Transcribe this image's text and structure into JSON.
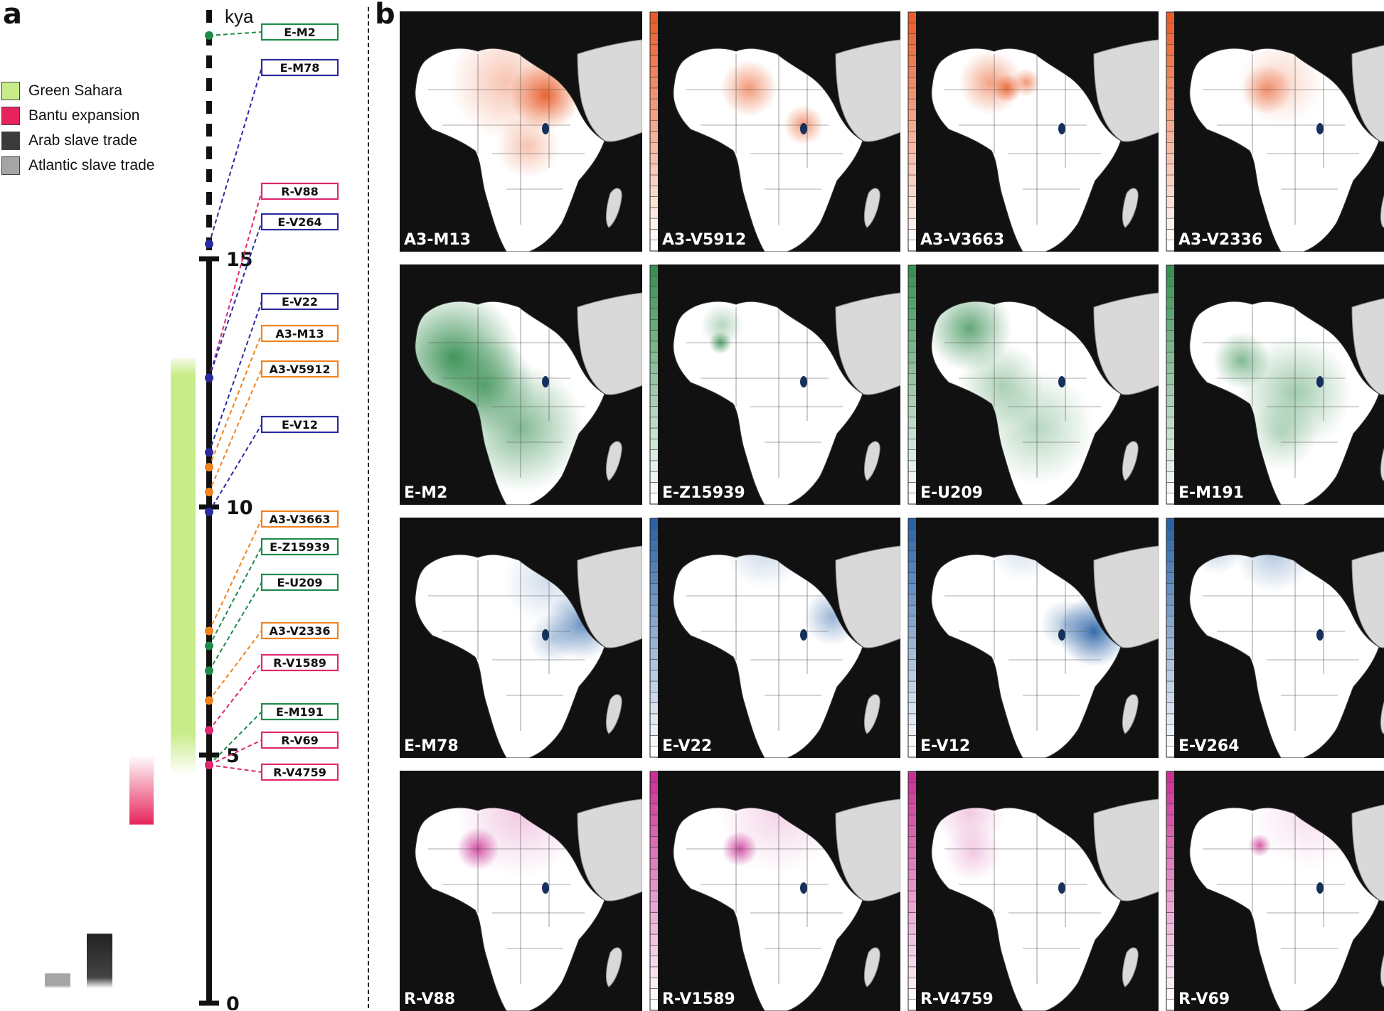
{
  "panels": {
    "a_label": "a",
    "b_label": "b"
  },
  "legend": [
    {
      "label": "Green Sahara",
      "color": "#c9ec8a"
    },
    {
      "label": "Bantu expansion",
      "color": "#e6245b"
    },
    {
      "label": "Arab slave trade",
      "color": "#3b3b3b"
    },
    {
      "label": "Atlantic slave trade",
      "color": "#a5a5a5"
    }
  ],
  "timeline": {
    "unit": "kya",
    "ticks": [
      15,
      10,
      5,
      0
    ],
    "markers": [
      {
        "label": "E-M2",
        "kya": 19.5,
        "family": "green"
      },
      {
        "label": "E-M78",
        "kya": 15.3,
        "family": "blue"
      },
      {
        "label": "R-V88",
        "kya": 12.6,
        "family": "pink"
      },
      {
        "label": "E-V264",
        "kya": 12.6,
        "family": "blue"
      },
      {
        "label": "E-V22",
        "kya": 11.1,
        "family": "blue"
      },
      {
        "label": "A3-M13",
        "kya": 10.8,
        "family": "orange"
      },
      {
        "label": "A3-V5912",
        "kya": 10.3,
        "family": "orange"
      },
      {
        "label": "E-V12",
        "kya": 9.9,
        "family": "blue"
      },
      {
        "label": "A3-V3663",
        "kya": 7.5,
        "family": "orange"
      },
      {
        "label": "E-Z15939",
        "kya": 7.2,
        "family": "green"
      },
      {
        "label": "E-U209",
        "kya": 6.7,
        "family": "green"
      },
      {
        "label": "A3-V2336",
        "kya": 6.1,
        "family": "orange"
      },
      {
        "label": "R-V1589",
        "kya": 5.5,
        "family": "pink"
      },
      {
        "label": "E-M191",
        "kya": 4.8,
        "family": "green"
      },
      {
        "label": "R-V69",
        "kya": 4.8,
        "family": "pink"
      },
      {
        "label": "R-V4759",
        "kya": 4.8,
        "family": "pink"
      }
    ],
    "events": [
      {
        "name": "Green Sahara",
        "from_kya": 13.0,
        "to_kya": 4.6
      },
      {
        "name": "Bantu expansion",
        "from_kya": 5.0,
        "to_kya": 3.6
      },
      {
        "name": "Arab slave trade",
        "from_kya": 1.4,
        "to_kya": 0.3
      },
      {
        "name": "Atlantic slave trade",
        "from_kya": 0.6,
        "to_kya": 0.3
      }
    ]
  },
  "colors": {
    "green": "#1e8a4a",
    "blue": "#2a2aa0",
    "orange": "#f0831f",
    "pink": "#e0266e",
    "map_orange": "#e8541e",
    "map_green": "#2e8a4a",
    "map_blue": "#1f5aa0",
    "map_pink": "#c8268e",
    "ocean": "#111111",
    "land_other": "#d9d9d9"
  },
  "maps": [
    {
      "label": "A3-M13",
      "scheme": "orange",
      "ticks": [
        "40",
        "36",
        "32",
        "28",
        "24",
        "20",
        "16",
        "12",
        "8",
        "4",
        "0"
      ]
    },
    {
      "label": "A3-V5912",
      "scheme": "orange",
      "ticks": [
        "28",
        "24",
        "20",
        "16",
        "12",
        "8",
        "4",
        "0"
      ]
    },
    {
      "label": "A3-V3663",
      "scheme": "orange",
      "ticks": [
        "25",
        "20",
        "15",
        "10",
        "5",
        "0"
      ]
    },
    {
      "label": "A3-V2336",
      "scheme": "orange",
      "ticks": [
        "27",
        "24",
        "21",
        "18",
        "15",
        "12",
        "9",
        "6",
        "3",
        "0"
      ]
    },
    {
      "label": "E-M2",
      "scheme": "green",
      "ticks": [
        "100",
        "90",
        "80",
        "70",
        "60",
        "50",
        "40",
        "30",
        "20",
        "10",
        "0"
      ]
    },
    {
      "label": "E-Z15939",
      "scheme": "green",
      "ticks": [
        "56",
        "52",
        "48",
        "44",
        "40",
        "36",
        "32",
        "28",
        "24",
        "20",
        "16",
        "12",
        "8",
        "4",
        "0"
      ]
    },
    {
      "label": "E-U209",
      "scheme": "green",
      "ticks": [
        "65",
        "60",
        "55",
        "50",
        "45",
        "40",
        "35",
        "30",
        "25",
        "20",
        "15",
        "10",
        "5",
        "0"
      ]
    },
    {
      "label": "E-M191",
      "scheme": "green",
      "ticks": [
        "70",
        "60",
        "50",
        "40",
        "30",
        "20",
        "10",
        "0"
      ]
    },
    {
      "label": "E-M78",
      "scheme": "blue",
      "ticks": [
        "90",
        "80",
        "70",
        "60",
        "50",
        "40",
        "30",
        "20",
        "10",
        "0"
      ]
    },
    {
      "label": "E-V22",
      "scheme": "blue",
      "ticks": [
        "90",
        "80",
        "70",
        "60",
        "50",
        "40",
        "30",
        "20",
        "10",
        "0"
      ]
    },
    {
      "label": "E-V12",
      "scheme": "blue",
      "ticks": [
        "70",
        "60",
        "50",
        "40",
        "30",
        "20",
        "10",
        "0"
      ]
    },
    {
      "label": "E-V264",
      "scheme": "blue",
      "ticks": [
        "32",
        "28",
        "24",
        "20",
        "16",
        "12",
        "8",
        "4",
        "0"
      ]
    },
    {
      "label": "R-V88",
      "scheme": "pink",
      "ticks": [
        "90",
        "80",
        "70",
        "60",
        "50",
        "40",
        "30",
        "20",
        "10",
        "0"
      ]
    },
    {
      "label": "R-V1589",
      "scheme": "pink",
      "ticks": [
        "90",
        "80",
        "70",
        "60",
        "50",
        "40",
        "30",
        "20",
        "10",
        "0"
      ]
    },
    {
      "label": "R-V4759",
      "scheme": "pink",
      "ticks": [
        "14",
        "12",
        "10",
        "8",
        "6",
        "4",
        "2",
        "0"
      ]
    },
    {
      "label": "R-V69",
      "scheme": "pink",
      "ticks": [
        "60",
        "50",
        "40",
        "30",
        "20",
        "10",
        "0"
      ]
    }
  ]
}
